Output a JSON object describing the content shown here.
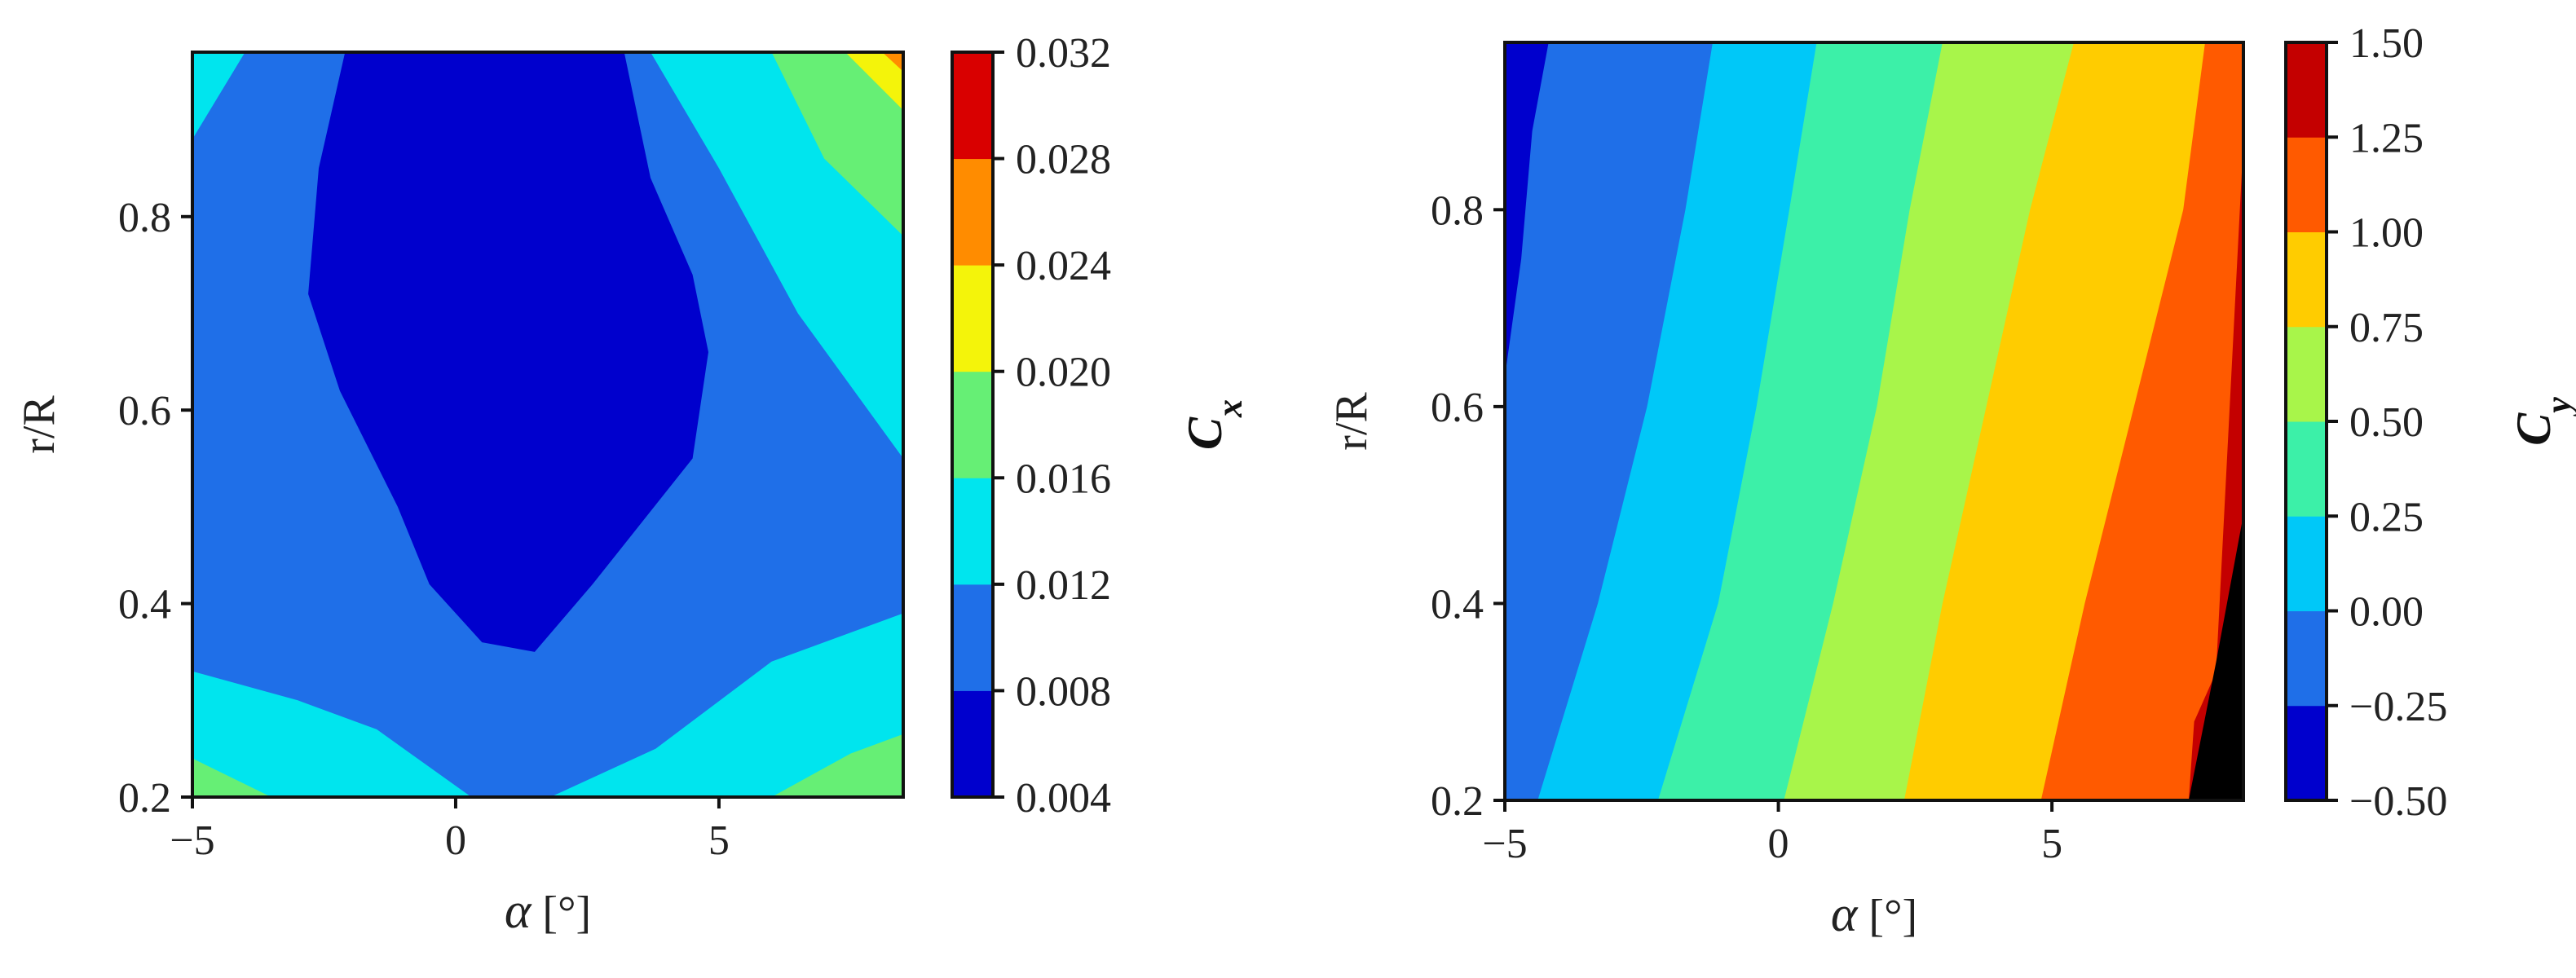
{
  "chart_data": [
    {
      "type": "contour",
      "name": "Cx contour",
      "xlabel_symbol": "α",
      "xlabel_unit": "[°]",
      "ylabel": "r/R",
      "xlim": [
        -5,
        8.5
      ],
      "ylim": [
        0.2,
        0.97
      ],
      "xticks": [
        "−5",
        "0",
        "5"
      ],
      "xtick_values": [
        -5,
        0,
        5
      ],
      "yticks": [
        "0.2",
        "0.4",
        "0.6",
        "0.8"
      ],
      "ytick_values": [
        0.2,
        0.4,
        0.6,
        0.8
      ],
      "colorbar": {
        "label_base": "C",
        "label_sub": "x",
        "levels": [
          0.004,
          0.008,
          0.012,
          0.016,
          0.02,
          0.024,
          0.028,
          0.032
        ],
        "level_labels": [
          "0.004",
          "0.008",
          "0.012",
          "0.016",
          "0.020",
          "0.024",
          "0.028",
          "0.032"
        ],
        "colors": [
          "#0000cd",
          "#1f6fe8",
          "#00e5ee",
          "#66ef75",
          "#f4f40a",
          "#ff8c00",
          "#d90000"
        ]
      },
      "regions": [
        {
          "band": 1,
          "points": [
            [
              -5,
              0.2
            ],
            [
              8.5,
              0.2
            ],
            [
              8.5,
              0.97
            ],
            [
              -5,
              0.97
            ]
          ]
        },
        {
          "band": 2,
          "points": [
            [
              -5,
              0.33
            ],
            [
              -3,
              0.3
            ],
            [
              -1.5,
              0.27
            ],
            [
              0.3,
              0.2
            ],
            [
              -5,
              0.2
            ]
          ]
        },
        {
          "band": 2,
          "points": [
            [
              1.8,
              0.2
            ],
            [
              3.8,
              0.25
            ],
            [
              6,
              0.34
            ],
            [
              8.5,
              0.39
            ],
            [
              8.5,
              0.2
            ]
          ]
        },
        {
          "band": 3,
          "points": [
            [
              -5,
              0.24
            ],
            [
              -3.5,
              0.2
            ],
            [
              -5,
              0.2
            ]
          ]
        },
        {
          "band": 3,
          "points": [
            [
              6,
              0.2
            ],
            [
              7.5,
              0.245
            ],
            [
              8.5,
              0.265
            ],
            [
              8.5,
              0.2
            ]
          ]
        },
        {
          "band": 2,
          "points": [
            [
              -5,
              0.88
            ],
            [
              -4,
              0.97
            ],
            [
              -5,
              0.97
            ]
          ]
        },
        {
          "band": 2,
          "points": [
            [
              3.7,
              0.97
            ],
            [
              5,
              0.85
            ],
            [
              6.5,
              0.7
            ],
            [
              8.5,
              0.55
            ],
            [
              8.5,
              0.97
            ]
          ]
        },
        {
          "band": 3,
          "points": [
            [
              6,
              0.97
            ],
            [
              7,
              0.86
            ],
            [
              8.5,
              0.78
            ],
            [
              8.5,
              0.97
            ]
          ]
        },
        {
          "band": 4,
          "points": [
            [
              7.4,
              0.97
            ],
            [
              8.5,
              0.91
            ],
            [
              8.5,
              0.97
            ]
          ]
        },
        {
          "band": 5,
          "points": [
            [
              8.1,
              0.97
            ],
            [
              8.5,
              0.95
            ],
            [
              8.5,
              0.97
            ]
          ]
        },
        {
          "band": 0,
          "points": [
            [
              -2.1,
              0.97
            ],
            [
              -2.6,
              0.85
            ],
            [
              -2.8,
              0.72
            ],
            [
              -2.2,
              0.62
            ],
            [
              -1.1,
              0.5
            ],
            [
              -0.5,
              0.42
            ],
            [
              0.5,
              0.36
            ],
            [
              1.5,
              0.35
            ],
            [
              2.6,
              0.42
            ],
            [
              4.5,
              0.55
            ],
            [
              4.8,
              0.66
            ],
            [
              4.5,
              0.74
            ],
            [
              3.7,
              0.84
            ],
            [
              3.2,
              0.97
            ]
          ]
        }
      ]
    },
    {
      "type": "contour",
      "name": "Cy contour",
      "xlabel_symbol": "α",
      "xlabel_unit": "[°]",
      "ylabel": "r/R",
      "xlim": [
        -5,
        8.5
      ],
      "ylim": [
        0.2,
        0.97
      ],
      "xticks": [
        "−5",
        "0",
        "5"
      ],
      "xtick_values": [
        -5,
        0,
        5
      ],
      "yticks": [
        "0.2",
        "0.4",
        "0.6",
        "0.8"
      ],
      "ytick_values": [
        0.2,
        0.4,
        0.6,
        0.8
      ],
      "colorbar": {
        "label_base": "C",
        "label_sub": "y",
        "levels": [
          -0.5,
          -0.25,
          0.0,
          0.25,
          0.5,
          0.75,
          1.0,
          1.25,
          1.5
        ],
        "level_labels": [
          "−0.50",
          "−0.25",
          "0.00",
          "0.25",
          "0.50",
          "0.75",
          "1.00",
          "1.25",
          "1.50"
        ],
        "colors": [
          "#0000cd",
          "#1f6fe8",
          "#00c8f8",
          "#3cf0a8",
          "#a8f54a",
          "#ffcc00",
          "#ff5a00",
          "#c40000"
        ]
      },
      "boundaries": [
        [
          [
            -5,
            0.63
          ],
          [
            -4.7,
            0.75
          ],
          [
            -4.5,
            0.88
          ],
          [
            -4.2,
            0.97
          ]
        ],
        [
          [
            -4.4,
            0.2
          ],
          [
            -3.3,
            0.4
          ],
          [
            -2.4,
            0.6
          ],
          [
            -1.7,
            0.8
          ],
          [
            -1.2,
            0.97
          ]
        ],
        [
          [
            -2.2,
            0.2
          ],
          [
            -1.1,
            0.4
          ],
          [
            -0.4,
            0.6
          ],
          [
            0.2,
            0.8
          ],
          [
            0.7,
            0.97
          ]
        ],
        [
          [
            0.1,
            0.2
          ],
          [
            1,
            0.4
          ],
          [
            1.8,
            0.6
          ],
          [
            2.4,
            0.8
          ],
          [
            3,
            0.97
          ]
        ],
        [
          [
            2.3,
            0.2
          ],
          [
            3,
            0.4
          ],
          [
            3.8,
            0.6
          ],
          [
            4.6,
            0.8
          ],
          [
            5.4,
            0.97
          ]
        ],
        [
          [
            4.8,
            0.2
          ],
          [
            5.6,
            0.4
          ],
          [
            6.5,
            0.6
          ],
          [
            7.4,
            0.8
          ],
          [
            7.8,
            0.97
          ]
        ],
        [
          [
            7.5,
            0.2
          ],
          [
            7.6,
            0.28
          ],
          [
            8,
            0.33
          ],
          [
            8.5,
            0.87
          ]
        ],
        [
          [
            7.5,
            0.2
          ],
          [
            8,
            0.34
          ],
          [
            8.5,
            0.49
          ]
        ]
      ]
    }
  ]
}
